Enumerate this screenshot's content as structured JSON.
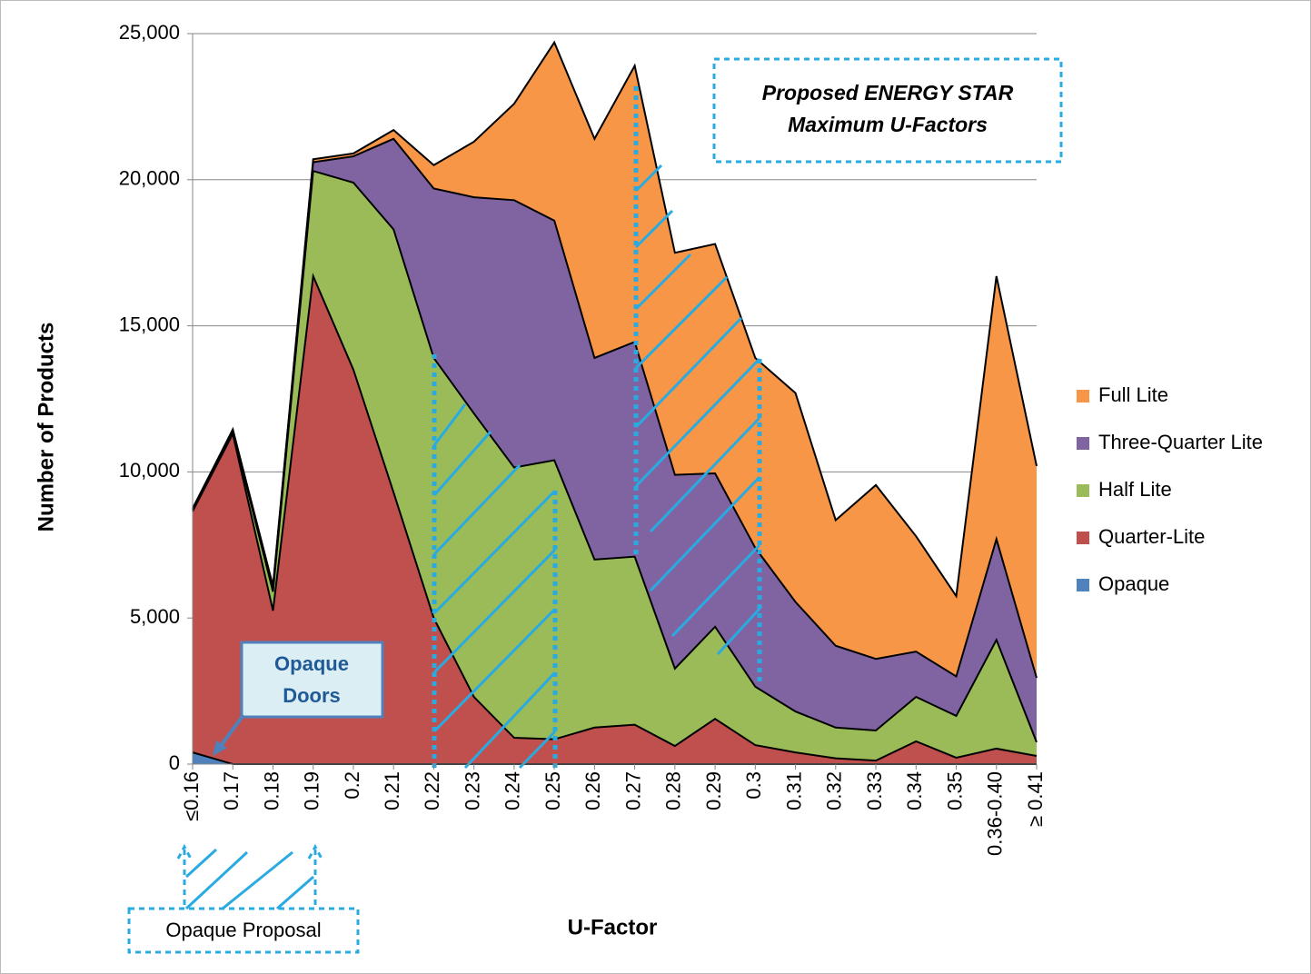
{
  "chart_data": {
    "type": "stacked_area",
    "xlabel": "U-Factor",
    "ylabel": "Number of Products",
    "categories": [
      "≤0.16",
      "0.17",
      "0.18",
      "0.19",
      "0.2",
      "0.21",
      "0.22",
      "0.23",
      "0.24",
      "0.25",
      "0.26",
      "0.27",
      "0.28",
      "0.29",
      "0.3",
      "0.31",
      "0.32",
      "0.33",
      "0.34",
      "0.35",
      "0.36-0.40",
      "≥ 0.41"
    ],
    "series": [
      {
        "name": "Opaque",
        "color": "#4f81bd",
        "values": [
          400,
          0,
          0,
          0,
          0,
          0,
          0,
          0,
          0,
          0,
          0,
          0,
          0,
          0,
          0,
          0,
          0,
          0,
          0,
          0,
          0,
          0
        ]
      },
      {
        "name": "Quarter-Lite",
        "color": "#c0504d",
        "values": [
          8250,
          11300,
          5250,
          16700,
          13500,
          9300,
          5000,
          2300,
          900,
          850,
          1250,
          1350,
          620,
          1550,
          650,
          400,
          200,
          120,
          780,
          220,
          530,
          280
        ]
      },
      {
        "name": "Half Lite",
        "color": "#9bbb59",
        "values": [
          50,
          100,
          650,
          3600,
          6400,
          9000,
          8900,
          9700,
          9250,
          9550,
          5750,
          5750,
          2650,
          3150,
          2000,
          1400,
          1050,
          1030,
          1520,
          1430,
          3720,
          470
        ]
      },
      {
        "name": "Three-Quarter Lite",
        "color": "#8064a2",
        "values": [
          20,
          50,
          150,
          300,
          900,
          3100,
          5800,
          7400,
          9150,
          8200,
          6900,
          7350,
          6630,
          5250,
          4750,
          3750,
          2800,
          2450,
          1550,
          1350,
          3450,
          2200
        ]
      },
      {
        "name": "Full Lite",
        "color": "#f79646",
        "values": [
          30,
          0,
          50,
          100,
          100,
          300,
          800,
          1900,
          3300,
          6100,
          7500,
          9450,
          7600,
          7850,
          6500,
          7150,
          4300,
          5950,
          3950,
          2750,
          9000,
          7250
        ]
      }
    ],
    "ylim": [
      0,
      25000
    ],
    "yticks": [
      0,
      {
        "value": 5000,
        "label": "5,000"
      },
      {
        "value": 10000,
        "label": "10,000"
      },
      {
        "value": 15000,
        "label": "15,000"
      },
      {
        "value": 20000,
        "label": "20,000"
      },
      {
        "value": 25000,
        "label": "25,000"
      }
    ],
    "grid": true,
    "legend": "right",
    "annotations": [
      {
        "lines": [
          "Proposed ENERGY STAR",
          "Maximum U-Factors"
        ]
      },
      {
        "lines": [
          "Opaque",
          "Doors"
        ]
      },
      {
        "lines": [
          "Opaque Proposal"
        ]
      }
    ]
  }
}
